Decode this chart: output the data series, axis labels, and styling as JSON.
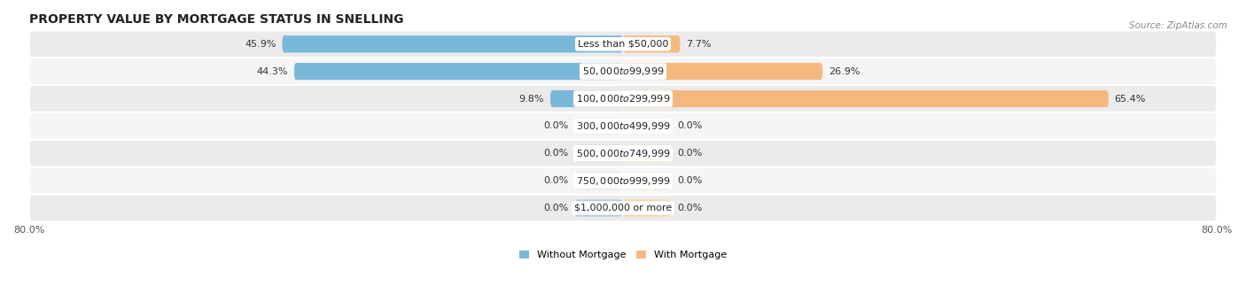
{
  "title": "PROPERTY VALUE BY MORTGAGE STATUS IN SNELLING",
  "source": "Source: ZipAtlas.com",
  "categories": [
    "Less than $50,000",
    "$50,000 to $99,999",
    "$100,000 to $299,999",
    "$300,000 to $499,999",
    "$500,000 to $749,999",
    "$750,000 to $999,999",
    "$1,000,000 or more"
  ],
  "without_mortgage": [
    45.9,
    44.3,
    9.8,
    0.0,
    0.0,
    0.0,
    0.0
  ],
  "with_mortgage": [
    7.7,
    26.9,
    65.4,
    0.0,
    0.0,
    0.0,
    0.0
  ],
  "color_without": "#7ab8d9",
  "color_with": "#f5b97f",
  "color_without_pale": "#aecfe8",
  "color_with_pale": "#f9d4aa",
  "row_colors": [
    "#ebebeb",
    "#f5f5f5"
  ],
  "xlim": 80.0,
  "zero_bar_width": 6.5,
  "bar_height": 0.62,
  "title_fontsize": 10,
  "label_fontsize": 8,
  "tick_fontsize": 8,
  "source_fontsize": 7.5,
  "legend_fontsize": 8
}
